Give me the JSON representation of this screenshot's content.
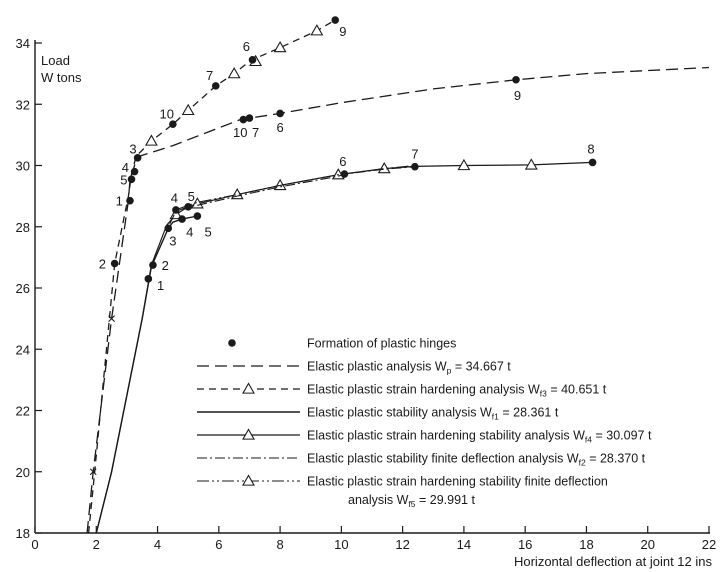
{
  "chart_data": {
    "type": "line",
    "xlabel": "Horizontal deflection at joint 12 ins",
    "ylabel_line1": "Load",
    "ylabel_line2": "W tons",
    "xlim": [
      0,
      22
    ],
    "ylim": [
      18,
      34
    ],
    "x_ticks": [
      0,
      2,
      4,
      6,
      8,
      10,
      12,
      14,
      16,
      18,
      20,
      22
    ],
    "y_ticks": [
      18,
      20,
      22,
      24,
      26,
      28,
      30,
      32,
      34
    ],
    "grid": false,
    "legend_placement": "bottom-right",
    "legend": [
      {
        "style": "hinge",
        "label": "Formation of plastic hinges"
      },
      {
        "style": "long-dash",
        "label": "Elastic plastic analysis W",
        "sub": "p",
        "value": " = 34.667 t"
      },
      {
        "style": "short-dash-triangle",
        "label": "Elastic plastic strain hardening analysis W",
        "sub": "f3",
        "value": " = 40.651 t"
      },
      {
        "style": "solid",
        "label": "Elastic plastic stability analysis W",
        "sub": "f1",
        "value": " = 28.361 t"
      },
      {
        "style": "solid-triangle",
        "label": "Elastic plastic strain hardening stability analysis W",
        "sub": "f4",
        "value": " = 30.097 t"
      },
      {
        "style": "dashdot",
        "label": "Elastic plastic stability finite deflection analysis W",
        "sub": "f2",
        "value": " = 28.370 t"
      },
      {
        "style": "dashdot-triangle",
        "label": "Elastic plastic strain hardening stability finite deflection",
        "label2": "analysis W",
        "sub": "f5",
        "value": " = 29.991 t"
      }
    ],
    "series": [
      {
        "style": "long-dash",
        "x": [
          1.7,
          1.9,
          2.5,
          3.05,
          3.1,
          3.15,
          3.2,
          3.3,
          3.4,
          4.5,
          6.7,
          8.0,
          10.0,
          13.0,
          15.7,
          18.0,
          22.0
        ],
        "y": [
          18.0,
          20.0,
          25.0,
          28.85,
          29.55,
          29.7,
          29.85,
          30.15,
          30.3,
          30.65,
          31.5,
          31.7,
          32.05,
          32.5,
          32.8,
          33.0,
          33.2
        ],
        "crosses_x": [
          1.9,
          2.5
        ],
        "crosses_y": [
          20.0,
          25.0
        ]
      },
      {
        "style": "short-dash-triangle",
        "x": [
          1.75,
          1.95,
          2.6,
          3.05,
          3.15,
          3.3,
          3.8,
          4.5,
          5.0,
          5.9,
          6.5,
          7.0,
          7.2,
          8.0,
          9.2,
          9.8
        ],
        "y": [
          18.0,
          20.0,
          26.8,
          29.0,
          29.7,
          30.3,
          30.8,
          31.35,
          31.8,
          32.6,
          33.0,
          33.4,
          33.5,
          33.85,
          34.4,
          34.75
        ],
        "triangles_x": [
          3.8,
          5.0,
          6.5,
          7.2,
          8.0,
          9.2
        ],
        "triangles_y": [
          30.8,
          31.8,
          33.0,
          33.4,
          33.85,
          34.4
        ]
      },
      {
        "style": "solid",
        "x": [
          2.0,
          2.5,
          3.5,
          3.8,
          4.35,
          4.5,
          4.8,
          5.3
        ],
        "y": [
          18.0,
          20.0,
          25.0,
          26.7,
          27.95,
          28.15,
          28.25,
          28.35
        ]
      },
      {
        "style": "solid-triangle",
        "x": [
          2.0,
          2.5,
          3.5,
          3.8,
          4.3,
          4.6,
          5.0,
          5.3,
          6.6,
          8.0,
          9.9,
          11.4,
          12.4,
          14.0,
          16.2,
          18.2
        ],
        "y": [
          18.0,
          20.0,
          25.0,
          26.75,
          28.05,
          28.4,
          28.65,
          28.75,
          29.05,
          29.35,
          29.7,
          29.9,
          29.97,
          30.0,
          30.02,
          30.1
        ],
        "triangles_x": [
          4.6,
          5.3,
          6.6,
          8.0,
          9.9,
          11.4,
          14.0,
          16.2
        ],
        "triangles_y": [
          28.4,
          28.75,
          29.05,
          29.35,
          29.7,
          29.9,
          30.0,
          30.02
        ]
      },
      {
        "style": "dashdot",
        "x": [
          4.4,
          4.6,
          5.0,
          5.3,
          6.6,
          8.0,
          9.9,
          10.1,
          11.4,
          12.4
        ],
        "y": [
          28.1,
          28.5,
          28.65,
          28.7,
          29.0,
          29.3,
          29.65,
          29.72,
          29.88,
          29.96
        ]
      },
      {
        "style": "dashdot-triangle",
        "x": [
          4.6,
          5.0,
          5.3,
          6.6,
          8.0,
          9.9,
          11.4,
          12.4
        ],
        "y": [
          28.55,
          28.7,
          28.8,
          29.05,
          29.35,
          29.7,
          29.9,
          30.0
        ]
      }
    ],
    "hinges": [
      {
        "x": 3.1,
        "y": 28.85,
        "label": "1",
        "lx": 2.75,
        "ly": 28.85
      },
      {
        "x": 2.6,
        "y": 26.8,
        "label": "2",
        "lx": 2.2,
        "ly": 26.8
      },
      {
        "x": 3.35,
        "y": 30.25,
        "label": "3",
        "lx": 3.2,
        "ly": 30.55
      },
      {
        "x": 3.25,
        "y": 29.8,
        "label": "4",
        "lx": 2.95,
        "ly": 29.95
      },
      {
        "x": 3.15,
        "y": 29.55,
        "label": "5",
        "lx": 2.9,
        "ly": 29.55
      },
      {
        "x": 7.1,
        "y": 33.45,
        "label": "6",
        "lx": 6.9,
        "ly": 33.9
      },
      {
        "x": 5.9,
        "y": 32.6,
        "label": "7",
        "lx": 5.7,
        "ly": 32.95
      },
      {
        "x": 9.8,
        "y": 34.75,
        "label": "9",
        "lx": 10.05,
        "ly": 34.4
      },
      {
        "x": 4.5,
        "y": 31.35,
        "label": "10",
        "lx": 4.3,
        "ly": 31.7
      },
      {
        "x": 8.0,
        "y": 31.7,
        "label": "6",
        "lx": 8.0,
        "ly": 31.25
      },
      {
        "x": 6.8,
        "y": 31.5,
        "label": "10",
        "lx": 6.7,
        "ly": 31.1
      },
      {
        "x": 7.0,
        "y": 31.55,
        "label": "7",
        "lx": 7.2,
        "ly": 31.1
      },
      {
        "x": 15.7,
        "y": 32.8,
        "label": "9",
        "lx": 15.75,
        "ly": 32.3
      },
      {
        "x": 3.7,
        "y": 26.3,
        "label": "1",
        "lx": 4.1,
        "ly": 26.1
      },
      {
        "x": 3.85,
        "y": 26.75,
        "label": "2",
        "lx": 4.25,
        "ly": 26.75
      },
      {
        "x": 4.35,
        "y": 27.95,
        "label": "3",
        "lx": 4.5,
        "ly": 27.55
      },
      {
        "x": 4.8,
        "y": 28.25,
        "label": "4",
        "lx": 5.05,
        "ly": 27.85
      },
      {
        "x": 5.3,
        "y": 28.35,
        "label": "5",
        "lx": 5.65,
        "ly": 27.85
      },
      {
        "x": 4.6,
        "y": 28.55,
        "label": "4",
        "lx": 4.55,
        "ly": 28.95
      },
      {
        "x": 5.0,
        "y": 28.65,
        "label": "5",
        "lx": 5.1,
        "ly": 29.0
      },
      {
        "x": 10.1,
        "y": 29.72,
        "label": "6",
        "lx": 10.05,
        "ly": 30.15
      },
      {
        "x": 12.4,
        "y": 29.96,
        "label": "7",
        "lx": 12.4,
        "ly": 30.4
      },
      {
        "x": 18.2,
        "y": 30.1,
        "label": "8",
        "lx": 18.15,
        "ly": 30.55
      }
    ]
  }
}
